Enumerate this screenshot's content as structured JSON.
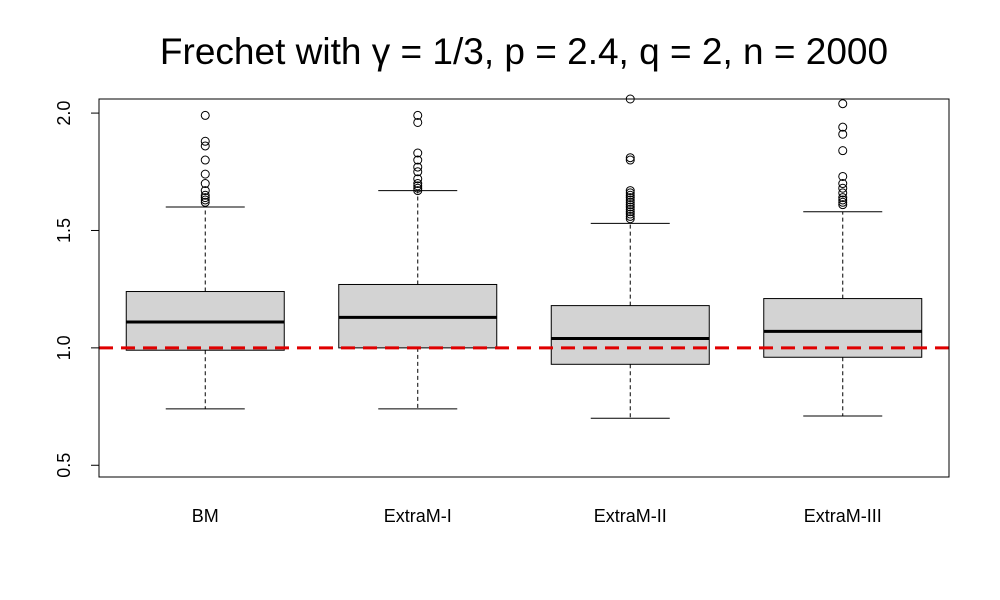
{
  "chart_data": {
    "type": "boxplot",
    "title": "Frechet with γ = 1/3, p = 2.4, q = 2, n = 2000",
    "xlabel": "",
    "ylabel": "",
    "ylim": [
      0.45,
      2.06
    ],
    "yticks": [
      0.5,
      1.0,
      1.5,
      2.0
    ],
    "ytick_labels": [
      "0.5",
      "1.0",
      "1.5",
      "2.0"
    ],
    "categories": [
      "BM",
      "ExtraM-I",
      "ExtraM-II",
      "ExtraM-III"
    ],
    "boxes": [
      {
        "name": "BM",
        "whisker_low": 0.74,
        "q1": 0.99,
        "median": 1.11,
        "q3": 1.24,
        "whisker_high": 1.6,
        "outliers": [
          1.62,
          1.63,
          1.64,
          1.65,
          1.67,
          1.7,
          1.74,
          1.8,
          1.86,
          1.88,
          1.99
        ]
      },
      {
        "name": "ExtraM-I",
        "whisker_low": 0.74,
        "q1": 1.0,
        "median": 1.13,
        "q3": 1.27,
        "whisker_high": 1.67,
        "outliers": [
          1.67,
          1.68,
          1.69,
          1.7,
          1.72,
          1.75,
          1.77,
          1.8,
          1.83,
          1.96,
          1.99
        ]
      },
      {
        "name": "ExtraM-II",
        "whisker_low": 0.7,
        "q1": 0.93,
        "median": 1.04,
        "q3": 1.18,
        "whisker_high": 1.53,
        "outliers": [
          1.55,
          1.56,
          1.57,
          1.58,
          1.59,
          1.6,
          1.61,
          1.62,
          1.63,
          1.64,
          1.65,
          1.66,
          1.67,
          1.8,
          1.81,
          2.06
        ]
      },
      {
        "name": "ExtraM-III",
        "whisker_low": 0.71,
        "q1": 0.96,
        "median": 1.07,
        "q3": 1.21,
        "whisker_high": 1.58,
        "outliers": [
          1.61,
          1.62,
          1.63,
          1.64,
          1.66,
          1.68,
          1.7,
          1.73,
          1.84,
          1.91,
          1.94,
          2.04
        ]
      }
    ],
    "reference_line": {
      "y": 1.0,
      "style": "dashed",
      "color": "#e00000"
    },
    "box_fill": "#d3d3d3",
    "grid": false
  }
}
